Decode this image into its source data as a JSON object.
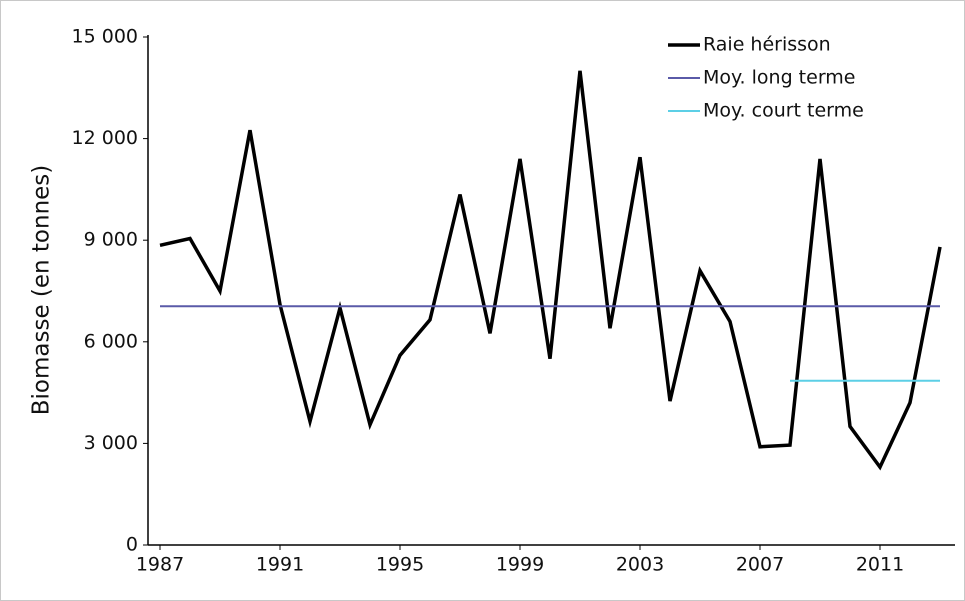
{
  "chart_data": {
    "type": "line",
    "y_label": "Biomasse (en tonnes)",
    "x": [
      1987,
      1988,
      1989,
      1990,
      1991,
      1992,
      1993,
      1994,
      1995,
      1996,
      1997,
      1998,
      1999,
      2000,
      2001,
      2002,
      2003,
      2004,
      2005,
      2006,
      2007,
      2008,
      2009,
      2010,
      2011,
      2012,
      2013
    ],
    "series": [
      {
        "name": "Raie hérisson",
        "color": "#000000",
        "width": 3.5,
        "values": [
          8850,
          9050,
          7500,
          12250,
          7100,
          3650,
          7000,
          3550,
          5600,
          6650,
          10350,
          6250,
          11400,
          5500,
          14000,
          6400,
          11450,
          4250,
          8100,
          6600,
          2900,
          2950,
          11400,
          3500,
          2300,
          4200,
          8800
        ]
      },
      {
        "name": "Moy. long terme",
        "color": "#5a5aa8",
        "width": 2,
        "values": [
          7050,
          7050,
          7050,
          7050,
          7050,
          7050,
          7050,
          7050,
          7050,
          7050,
          7050,
          7050,
          7050,
          7050,
          7050,
          7050,
          7050,
          7050,
          7050,
          7050,
          7050,
          7050,
          7050,
          7050,
          7050,
          7050,
          7050
        ]
      },
      {
        "name": "Moy. court terme",
        "color": "#5ccfe6",
        "width": 2,
        "values": [
          null,
          null,
          null,
          null,
          null,
          null,
          null,
          null,
          null,
          null,
          null,
          null,
          null,
          null,
          null,
          null,
          null,
          null,
          null,
          null,
          null,
          4850,
          4850,
          4850,
          4850,
          4850,
          4850
        ]
      }
    ],
    "xlim": [
      1986.6,
      2013.5
    ],
    "xticks": [
      1987,
      1991,
      1995,
      1999,
      2003,
      2007,
      2011
    ],
    "ylim": [
      0,
      15000
    ],
    "yticks": [
      0,
      {
        "value": 3000,
        "label": "3 000"
      },
      {
        "value": 6000,
        "label": "6 000"
      },
      {
        "value": 9000,
        "label": "9 000"
      },
      {
        "value": 12000,
        "label": "12 000"
      },
      {
        "value": 15000,
        "label": "15 000"
      }
    ],
    "grid": false,
    "legend": "upper right"
  }
}
